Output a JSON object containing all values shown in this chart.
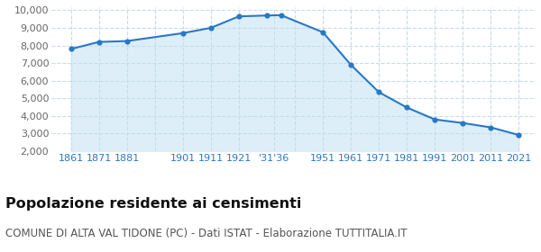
{
  "years": [
    1861,
    1871,
    1881,
    1901,
    1911,
    1921,
    1931,
    1936,
    1951,
    1961,
    1971,
    1981,
    1991,
    2001,
    2011,
    2021
  ],
  "population": [
    7800,
    8200,
    8250,
    8700,
    9000,
    9650,
    9700,
    9720,
    8750,
    6900,
    5350,
    4480,
    3800,
    3600,
    3350,
    2920
  ],
  "x_tick_labels": [
    "1861",
    "1871",
    "1881",
    "",
    "1901",
    "1911",
    "1921",
    "'31'36",
    "",
    "1951",
    "1961",
    "1971",
    "1981",
    "1991",
    "2001",
    "2011",
    "2021"
  ],
  "x_tick_positions": [
    1861,
    1871,
    1881,
    1891,
    1901,
    1911,
    1921,
    1933.5,
    1941,
    1951,
    1961,
    1971,
    1981,
    1991,
    2001,
    2011,
    2021
  ],
  "ylim": [
    2000,
    10000
  ],
  "yticks": [
    2000,
    3000,
    4000,
    5000,
    6000,
    7000,
    8000,
    9000,
    10000
  ],
  "line_color": "#2878c8",
  "fill_color": "#ddeef8",
  "marker_color": "#2878c8",
  "bg_color": "#ffffff",
  "grid_color": "#c8dce8",
  "title": "Popolazione residente ai censimenti",
  "subtitle": "COMUNE DI ALTA VAL TIDONE (PC) - Dati ISTAT - Elaborazione TUTTITALIA.IT",
  "title_fontsize": 11.5,
  "subtitle_fontsize": 8.5,
  "title_color": "#111111",
  "subtitle_color": "#555555",
  "xtick_color": "#2878c8",
  "ytick_color": "#666666",
  "xlim_left": 1854,
  "xlim_right": 2027
}
